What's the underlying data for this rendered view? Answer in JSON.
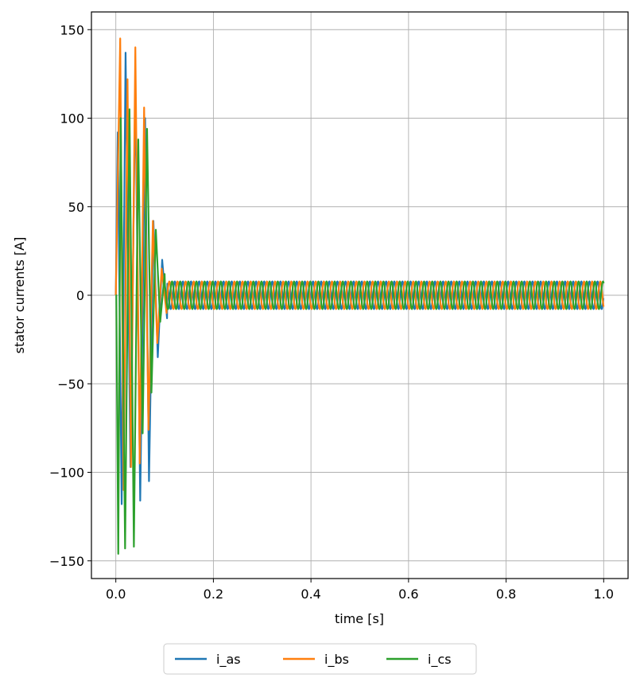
{
  "chart_data": {
    "type": "line",
    "title": "",
    "xlabel": "time [s]",
    "ylabel": "stator currents [A]",
    "xlim": [
      -0.05,
      1.05
    ],
    "ylim": [
      -160,
      160
    ],
    "xticks": [
      0.0,
      0.2,
      0.4,
      0.6,
      0.8,
      1.0
    ],
    "xtick_labels": [
      "0.0",
      "0.2",
      "0.4",
      "0.6",
      "0.8",
      "1.0"
    ],
    "yticks": [
      -150,
      -100,
      -50,
      0,
      50,
      100,
      150
    ],
    "ytick_labels": [
      "−150",
      "−100",
      "−50",
      "0",
      "50",
      "100",
      "150"
    ],
    "grid": true,
    "legend_position": "bottom-center, below axes",
    "series": [
      {
        "name": "i_as",
        "color": "#1f77b4",
        "phase_deg": 0,
        "peaks": [
          {
            "t": 0.004,
            "v": 92
          },
          {
            "t": 0.012,
            "v": -118
          },
          {
            "t": 0.02,
            "v": 137
          },
          {
            "t": 0.03,
            "v": -97
          },
          {
            "t": 0.04,
            "v": 120
          },
          {
            "t": 0.05,
            "v": -116
          },
          {
            "t": 0.06,
            "v": 100
          },
          {
            "t": 0.068,
            "v": -105
          },
          {
            "t": 0.077,
            "v": 42
          },
          {
            "t": 0.086,
            "v": -35
          },
          {
            "t": 0.095,
            "v": 20
          },
          {
            "t": 0.105,
            "v": -13
          }
        ],
        "steady_state_amplitude": 7.8,
        "frequency_hz": 60
      },
      {
        "name": "i_bs",
        "color": "#ff7f0e",
        "phase_deg": -120,
        "peaks": [
          {
            "t": 0.009,
            "v": 145
          },
          {
            "t": 0.016,
            "v": -110
          },
          {
            "t": 0.024,
            "v": 122
          },
          {
            "t": 0.031,
            "v": -97
          },
          {
            "t": 0.04,
            "v": 140
          },
          {
            "t": 0.049,
            "v": -95
          },
          {
            "t": 0.058,
            "v": 106
          },
          {
            "t": 0.067,
            "v": -76
          },
          {
            "t": 0.076,
            "v": 42
          },
          {
            "t": 0.085,
            "v": -27
          },
          {
            "t": 0.094,
            "v": 15
          },
          {
            "t": 0.104,
            "v": -10
          }
        ],
        "steady_state_amplitude": 7.8,
        "frequency_hz": 60
      },
      {
        "name": "i_cs",
        "color": "#2ca02c",
        "phase_deg": 120,
        "peaks": [
          {
            "t": 0.001,
            "v": 0
          },
          {
            "t": 0.005,
            "v": -146
          },
          {
            "t": 0.01,
            "v": 100
          },
          {
            "t": 0.019,
            "v": -143
          },
          {
            "t": 0.028,
            "v": 105
          },
          {
            "t": 0.037,
            "v": -142
          },
          {
            "t": 0.046,
            "v": 88
          },
          {
            "t": 0.055,
            "v": -78
          },
          {
            "t": 0.064,
            "v": 94
          },
          {
            "t": 0.073,
            "v": -55
          },
          {
            "t": 0.082,
            "v": 37
          },
          {
            "t": 0.091,
            "v": -15
          },
          {
            "t": 0.1,
            "v": 12
          }
        ],
        "steady_state_amplitude": 7.8,
        "frequency_hz": 60
      }
    ]
  }
}
